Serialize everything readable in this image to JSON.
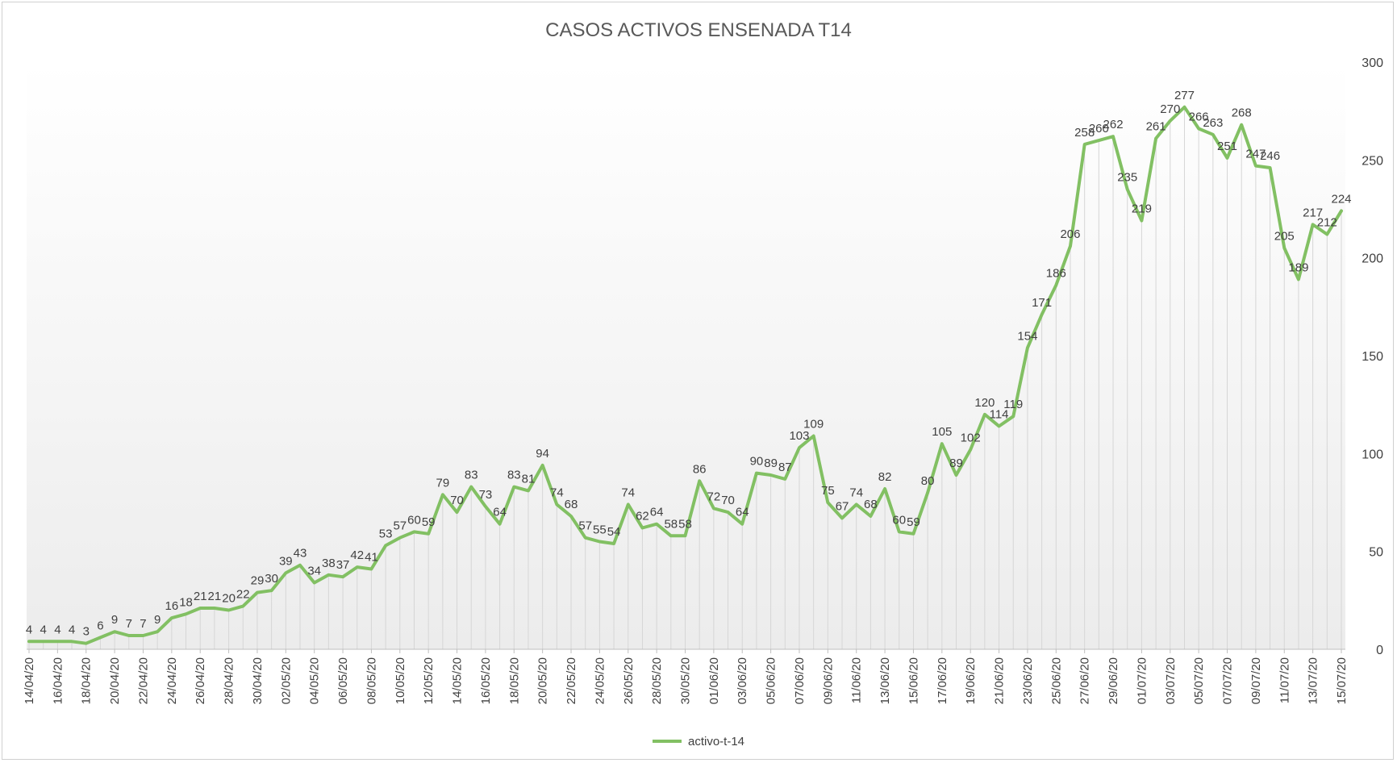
{
  "chart_data": {
    "type": "line",
    "title": "CASOS ACTIVOS ENSENADA T14",
    "xlabel": "",
    "ylabel": "",
    "ylim": [
      0,
      300
    ],
    "yticks": [
      0,
      50,
      100,
      150,
      200,
      250,
      300
    ],
    "y_axis_side": "right",
    "drop_lines": true,
    "legend_position": "bottom",
    "colors": {
      "line": "#82c063",
      "drop_line": "#d6d6d6",
      "grid_fade": "#f0f0f0"
    },
    "x": [
      "14/04/20",
      "15/04/20",
      "16/04/20",
      "17/04/20",
      "18/04/20",
      "19/04/20",
      "20/04/20",
      "21/04/20",
      "22/04/20",
      "23/04/20",
      "24/04/20",
      "25/04/20",
      "26/04/20",
      "27/04/20",
      "28/04/20",
      "29/04/20",
      "30/04/20",
      "01/05/20",
      "02/05/20",
      "03/05/20",
      "04/05/20",
      "05/05/20",
      "06/05/20",
      "07/05/20",
      "08/05/20",
      "09/05/20",
      "10/05/20",
      "11/05/20",
      "12/05/20",
      "13/05/20",
      "14/05/20",
      "15/05/20",
      "16/05/20",
      "17/05/20",
      "18/05/20",
      "19/05/20",
      "20/05/20",
      "21/05/20",
      "22/05/20",
      "23/05/20",
      "24/05/20",
      "25/05/20",
      "26/05/20",
      "27/05/20",
      "28/05/20",
      "29/05/20",
      "30/05/20",
      "31/05/20",
      "01/06/20",
      "02/06/20",
      "03/06/20",
      "04/06/20",
      "05/06/20",
      "06/06/20",
      "07/06/20",
      "08/06/20",
      "09/06/20",
      "10/06/20",
      "11/06/20",
      "12/06/20",
      "13/06/20",
      "14/06/20",
      "15/06/20",
      "16/06/20",
      "17/06/20",
      "18/06/20",
      "19/06/20",
      "20/06/20",
      "21/06/20",
      "22/06/20",
      "23/06/20",
      "24/06/20",
      "25/06/20",
      "26/06/20",
      "27/06/20",
      "28/06/20",
      "29/06/20",
      "30/06/20",
      "01/07/20",
      "02/07/20",
      "03/07/20",
      "04/07/20",
      "05/07/20",
      "06/07/20",
      "07/07/20",
      "08/07/20",
      "09/07/20",
      "10/07/20",
      "11/07/20",
      "12/07/20",
      "13/07/20",
      "14/07/20",
      "15/07/20"
    ],
    "x_tick_labels": [
      "14/04/20",
      "16/04/20",
      "18/04/20",
      "20/04/20",
      "22/04/20",
      "24/04/20",
      "26/04/20",
      "28/04/20",
      "30/04/20",
      "02/05/20",
      "04/05/20",
      "06/05/20",
      "08/05/20",
      "10/05/20",
      "12/05/20",
      "14/05/20",
      "16/05/20",
      "18/05/20",
      "20/05/20",
      "22/05/20",
      "24/05/20",
      "26/05/20",
      "28/05/20",
      "30/05/20",
      "01/06/20",
      "03/06/20",
      "05/06/20",
      "07/06/20",
      "09/06/20",
      "11/06/20",
      "13/06/20",
      "15/06/20",
      "17/06/20",
      "19/06/20",
      "21/06/20",
      "23/06/20",
      "25/06/20",
      "27/06/20",
      "29/06/20",
      "01/07/20",
      "03/07/20",
      "05/07/20",
      "07/07/20",
      "09/07/20",
      "11/07/20",
      "13/07/20",
      "15/07/20"
    ],
    "series": [
      {
        "name": "activo-t-14",
        "values": [
          4,
          4,
          4,
          4,
          3,
          6,
          9,
          7,
          7,
          9,
          16,
          18,
          21,
          21,
          20,
          22,
          29,
          30,
          39,
          43,
          34,
          38,
          37,
          42,
          41,
          53,
          57,
          60,
          59,
          79,
          70,
          83,
          73,
          64,
          83,
          81,
          94,
          74,
          68,
          57,
          55,
          54,
          74,
          62,
          64,
          58,
          58,
          86,
          72,
          70,
          64,
          90,
          89,
          87,
          103,
          109,
          75,
          67,
          74,
          68,
          82,
          60,
          59,
          80,
          105,
          89,
          102,
          120,
          114,
          119,
          154,
          171,
          186,
          206,
          258,
          260,
          262,
          235,
          219,
          261,
          270,
          277,
          266,
          263,
          251,
          268,
          247,
          246,
          205,
          189,
          217,
          212,
          224
        ]
      }
    ]
  }
}
